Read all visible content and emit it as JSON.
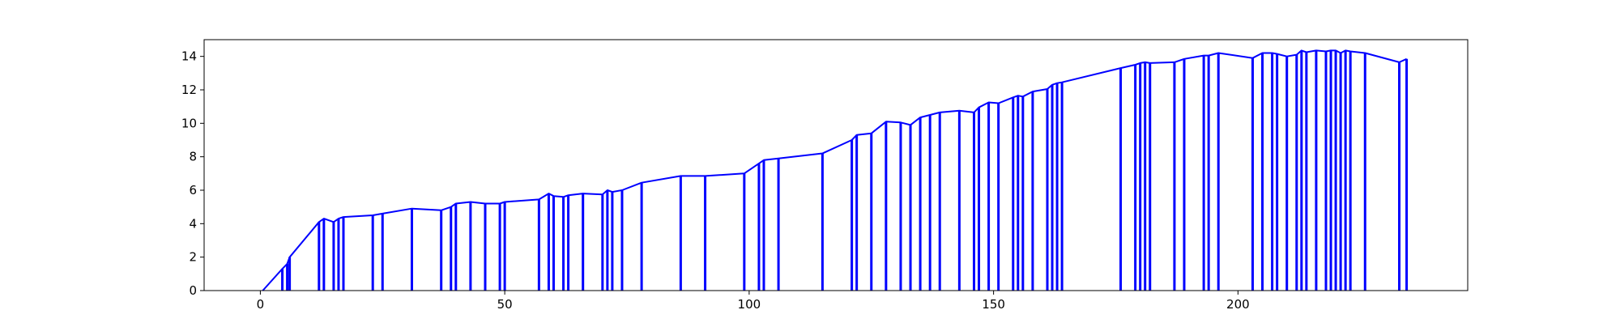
{
  "chart_data": {
    "type": "line",
    "title": "",
    "xlabel": "",
    "ylabel": "",
    "xlim": [
      -11.5,
      247
    ],
    "ylim": [
      0,
      15
    ],
    "x_ticks": [
      0,
      50,
      100,
      150,
      200
    ],
    "y_ticks": [
      0,
      2,
      4,
      6,
      8,
      10,
      12,
      14
    ],
    "grid": false,
    "legend": "none",
    "series": [
      {
        "color": "#0000ff",
        "x": [
          0.5,
          4.5,
          5.5,
          6,
          12,
          13,
          15,
          16,
          17,
          23,
          25,
          31,
          37,
          39,
          40,
          43,
          46,
          49,
          50,
          57,
          59,
          60,
          62,
          63,
          66,
          70,
          71,
          72,
          74,
          78,
          86,
          91,
          99,
          102,
          103,
          106,
          115,
          121,
          122,
          125,
          128,
          131,
          133,
          135,
          137,
          139,
          143,
          146,
          147,
          149,
          151,
          154,
          155,
          156,
          158,
          161,
          162,
          163,
          164,
          176,
          179,
          180,
          181,
          182,
          187,
          189,
          193,
          194,
          196,
          203,
          205,
          207,
          208,
          210,
          212,
          213,
          214,
          216,
          218,
          219,
          220,
          221,
          222,
          223,
          226,
          233,
          234.5
        ],
        "y": [
          0,
          1.3,
          1.6,
          2.0,
          4.1,
          4.3,
          4.1,
          4.3,
          4.4,
          4.5,
          4.6,
          4.9,
          4.8,
          5.0,
          5.2,
          5.3,
          5.2,
          5.2,
          5.3,
          5.45,
          5.8,
          5.65,
          5.6,
          5.7,
          5.8,
          5.75,
          6.0,
          5.9,
          6.0,
          6.45,
          6.85,
          6.85,
          7.0,
          7.6,
          7.8,
          7.9,
          8.2,
          9.0,
          9.3,
          9.4,
          10.1,
          10.05,
          9.9,
          10.35,
          10.5,
          10.65,
          10.75,
          10.65,
          10.95,
          11.25,
          11.2,
          11.55,
          11.65,
          11.6,
          11.9,
          12.05,
          12.3,
          12.4,
          12.45,
          13.3,
          13.5,
          13.6,
          13.65,
          13.6,
          13.65,
          13.85,
          14.05,
          14.05,
          14.2,
          13.9,
          14.2,
          14.2,
          14.15,
          14.0,
          14.1,
          14.35,
          14.25,
          14.35,
          14.3,
          14.35,
          14.35,
          14.2,
          14.35,
          14.3,
          14.2,
          13.65,
          13.85
        ],
        "drop_to_zero_from_index": 1
      }
    ]
  }
}
